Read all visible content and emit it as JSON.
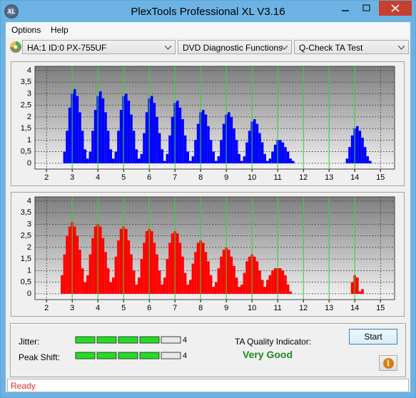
{
  "window": {
    "icon": "XL",
    "title": "PlexTools Professional XL V3.16"
  },
  "menu": [
    "Options",
    "Help"
  ],
  "toolbar": {
    "drive": "HA:1 ID:0  PX-755UF",
    "function": "DVD Diagnostic Functions",
    "test": "Q-Check TA Test"
  },
  "chart_data": [
    {
      "type": "bar",
      "color": "#0000ff",
      "grid": true,
      "xlim": [
        1.55,
        15.55
      ],
      "ylim": [
        -0.25,
        4.18
      ],
      "xticks": [
        2,
        3,
        4,
        5,
        6,
        7,
        8,
        9,
        10,
        11,
        12,
        13,
        14,
        15
      ],
      "yticks": [
        0,
        {
          "value": 0.5,
          "label": "0,5"
        },
        1,
        {
          "value": 1.5,
          "label": "1,5"
        },
        2,
        {
          "value": 2.5,
          "label": "2,5"
        },
        3,
        {
          "value": 3.5,
          "label": "3,5"
        },
        4
      ],
      "x": [
        2.7,
        2.8,
        2.9,
        3.0,
        3.1,
        3.2,
        3.3,
        3.4,
        3.5,
        3.6,
        3.7,
        3.8,
        3.9,
        4.0,
        4.1,
        4.2,
        4.3,
        4.4,
        4.5,
        4.6,
        4.7,
        4.8,
        4.9,
        5.0,
        5.1,
        5.2,
        5.3,
        5.4,
        5.5,
        5.6,
        5.7,
        5.8,
        5.9,
        6.0,
        6.1,
        6.2,
        6.3,
        6.4,
        6.5,
        6.6,
        6.7,
        6.8,
        6.9,
        7.0,
        7.1,
        7.2,
        7.3,
        7.4,
        7.5,
        7.6,
        7.7,
        7.8,
        7.9,
        8.0,
        8.1,
        8.2,
        8.3,
        8.4,
        8.5,
        8.6,
        8.7,
        8.8,
        8.9,
        9.0,
        9.1,
        9.2,
        9.3,
        9.4,
        9.5,
        9.6,
        9.7,
        9.8,
        9.9,
        10.0,
        10.1,
        10.2,
        10.3,
        10.4,
        10.5,
        10.6,
        10.7,
        10.8,
        10.9,
        11.0,
        11.1,
        11.2,
        11.3,
        11.4,
        11.5,
        11.6,
        13.7,
        13.8,
        13.9,
        14.0,
        14.1,
        14.2,
        14.3,
        14.4,
        14.5,
        14.6
      ],
      "values": [
        0.5,
        1.4,
        2.4,
        3.0,
        3.2,
        2.9,
        2.2,
        1.4,
        0.6,
        0.2,
        0.5,
        1.4,
        2.3,
        2.9,
        3.1,
        2.8,
        2.2,
        1.4,
        0.6,
        0.2,
        0.5,
        1.4,
        2.3,
        2.9,
        3.0,
        2.7,
        2.1,
        1.4,
        0.6,
        0.2,
        0.4,
        1.3,
        2.2,
        2.8,
        2.9,
        2.6,
        2.0,
        1.3,
        0.6,
        0.1,
        0.4,
        1.2,
        2.0,
        2.6,
        2.7,
        2.4,
        1.9,
        1.2,
        0.5,
        0.1,
        0.3,
        1.0,
        1.7,
        2.2,
        2.3,
        2.1,
        1.6,
        1.0,
        0.5,
        0.1,
        0.3,
        1.0,
        1.7,
        2.1,
        2.2,
        2.0,
        1.5,
        1.0,
        0.4,
        0.1,
        0.3,
        0.9,
        1.4,
        1.8,
        1.9,
        1.7,
        1.3,
        0.9,
        0.4,
        0.1,
        0.2,
        0.5,
        0.8,
        1.0,
        1.0,
        0.9,
        0.7,
        0.5,
        0.2,
        0.1,
        0.2,
        0.7,
        1.2,
        1.5,
        1.6,
        1.4,
        1.1,
        0.7,
        0.3,
        0.1
      ]
    },
    {
      "type": "bar",
      "color": "#ff0000",
      "grid": true,
      "xlim": [
        1.55,
        15.55
      ],
      "ylim": [
        -0.25,
        4.18
      ],
      "xticks": [
        2,
        3,
        4,
        5,
        6,
        7,
        8,
        9,
        10,
        11,
        12,
        13,
        14,
        15
      ],
      "yticks": [
        0,
        {
          "value": 0.5,
          "label": "0,5"
        },
        1,
        {
          "value": 1.5,
          "label": "1,5"
        },
        2,
        {
          "value": 2.5,
          "label": "2,5"
        },
        3,
        {
          "value": 3.5,
          "label": "3,5"
        },
        4
      ],
      "x": [
        2.6,
        2.7,
        2.8,
        2.9,
        3.0,
        3.1,
        3.2,
        3.3,
        3.4,
        3.5,
        3.6,
        3.7,
        3.8,
        3.9,
        4.0,
        4.1,
        4.2,
        4.3,
        4.4,
        4.5,
        4.6,
        4.7,
        4.8,
        4.9,
        5.0,
        5.1,
        5.2,
        5.3,
        5.4,
        5.5,
        5.6,
        5.7,
        5.8,
        5.9,
        6.0,
        6.1,
        6.2,
        6.3,
        6.4,
        6.5,
        6.6,
        6.7,
        6.8,
        6.9,
        7.0,
        7.1,
        7.2,
        7.3,
        7.4,
        7.5,
        7.6,
        7.7,
        7.8,
        7.9,
        8.0,
        8.1,
        8.2,
        8.3,
        8.4,
        8.5,
        8.6,
        8.7,
        8.8,
        8.9,
        9.0,
        9.1,
        9.2,
        9.3,
        9.4,
        9.5,
        9.6,
        9.7,
        9.8,
        9.9,
        10.0,
        10.1,
        10.2,
        10.3,
        10.4,
        10.5,
        10.6,
        10.7,
        10.8,
        10.9,
        11.0,
        11.1,
        11.2,
        11.3,
        11.4,
        11.5,
        13.9,
        14.0,
        14.1,
        14.2,
        14.3
      ],
      "values": [
        0.8,
        1.7,
        2.5,
        2.9,
        3.1,
        2.9,
        2.5,
        1.9,
        1.1,
        0.5,
        0.8,
        1.7,
        2.4,
        2.9,
        3.0,
        2.9,
        2.4,
        1.8,
        1.1,
        0.5,
        0.7,
        1.6,
        2.3,
        2.8,
        2.9,
        2.8,
        2.3,
        1.7,
        1.0,
        0.4,
        0.7,
        1.5,
        2.2,
        2.7,
        2.8,
        2.7,
        2.2,
        1.7,
        1.0,
        0.4,
        0.7,
        1.5,
        2.2,
        2.6,
        2.7,
        2.6,
        2.2,
        1.6,
        0.9,
        0.4,
        0.6,
        1.3,
        1.8,
        2.2,
        2.3,
        2.2,
        1.8,
        1.4,
        0.8,
        0.3,
        0.5,
        1.1,
        1.6,
        1.9,
        2.0,
        1.9,
        1.6,
        1.2,
        0.7,
        0.3,
        0.4,
        0.9,
        1.4,
        1.6,
        1.7,
        1.6,
        1.4,
        1.0,
        0.6,
        0.3,
        0.6,
        0.8,
        1.0,
        1.1,
        1.1,
        1.1,
        1.0,
        0.8,
        0.4,
        0.1,
        0.5,
        0.8,
        0.7,
        0.1,
        0.2
      ]
    }
  ],
  "results": {
    "jitter_label": "Jitter:",
    "jitter": 4,
    "peak_shift_label": "Peak Shift:",
    "peak_shift": 4,
    "quality_label": "TA Quality Indicator:",
    "quality": "Very Good"
  },
  "buttons": {
    "start": "Start",
    "info": "i"
  },
  "status": "Ready"
}
